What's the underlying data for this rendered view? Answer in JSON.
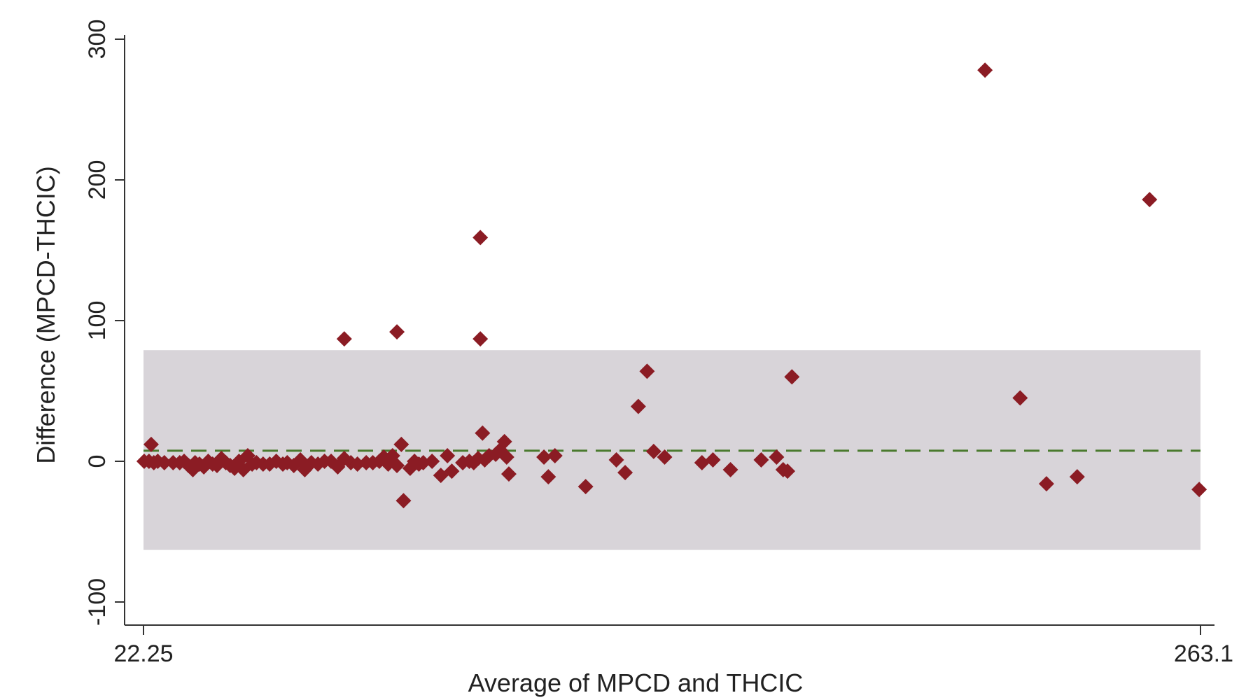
{
  "chart_data": {
    "type": "scatter",
    "title": "",
    "xlabel": "Average of MPCD and THCIC",
    "ylabel": "Difference (MPCD-THCIC)",
    "xlim": [
      22.25,
      263.1
    ],
    "ylim": [
      -100,
      300
    ],
    "x_ticks": [
      "22.25",
      "263.1"
    ],
    "y_ticks": [
      "-100",
      "0",
      "100",
      "200",
      "300"
    ],
    "mean_difference": 7.5,
    "limits_of_agreement": [
      -63,
      79
    ],
    "colors": {
      "points": "#8b1c24",
      "band": "#d8d4d9",
      "mean_line": "#4a7a2e",
      "axis": "#333333"
    },
    "points": [
      {
        "x": 22.4,
        "y": 0
      },
      {
        "x": 23.5,
        "y": 0
      },
      {
        "x": 24.0,
        "y": 12
      },
      {
        "x": 24.6,
        "y": -1
      },
      {
        "x": 25.5,
        "y": 0
      },
      {
        "x": 27.0,
        "y": -1
      },
      {
        "x": 29.0,
        "y": -1
      },
      {
        "x": 30.5,
        "y": -1
      },
      {
        "x": 31.5,
        "y": 0
      },
      {
        "x": 32.5,
        "y": -3
      },
      {
        "x": 33.5,
        "y": -6
      },
      {
        "x": 34.0,
        "y": -1
      },
      {
        "x": 35.0,
        "y": -2
      },
      {
        "x": 36.0,
        "y": -4
      },
      {
        "x": 37.0,
        "y": 0
      },
      {
        "x": 38.0,
        "y": -2
      },
      {
        "x": 39.0,
        "y": -3
      },
      {
        "x": 40.0,
        "y": 2
      },
      {
        "x": 41.0,
        "y": -1
      },
      {
        "x": 42.0,
        "y": -3
      },
      {
        "x": 43.0,
        "y": -5
      },
      {
        "x": 44.0,
        "y": 0
      },
      {
        "x": 45.0,
        "y": -6
      },
      {
        "x": 46.0,
        "y": 4
      },
      {
        "x": 47.0,
        "y": -2
      },
      {
        "x": 48.0,
        "y": -1
      },
      {
        "x": 49.5,
        "y": -2
      },
      {
        "x": 51.0,
        "y": -2
      },
      {
        "x": 52.5,
        "y": 0
      },
      {
        "x": 54.0,
        "y": -2
      },
      {
        "x": 55.0,
        "y": -1
      },
      {
        "x": 56.5,
        "y": -3
      },
      {
        "x": 58.0,
        "y": 1
      },
      {
        "x": 59.0,
        "y": -6
      },
      {
        "x": 60.5,
        "y": -1
      },
      {
        "x": 62.0,
        "y": -2
      },
      {
        "x": 63.5,
        "y": 0
      },
      {
        "x": 65.0,
        "y": 0
      },
      {
        "x": 66.5,
        "y": -4
      },
      {
        "x": 68.0,
        "y": 2
      },
      {
        "x": 69.5,
        "y": -1
      },
      {
        "x": 71.0,
        "y": -2
      },
      {
        "x": 73.0,
        "y": -1
      },
      {
        "x": 74.5,
        "y": -1
      },
      {
        "x": 76.0,
        "y": 0
      },
      {
        "x": 77.0,
        "y": 3
      },
      {
        "x": 78.0,
        "y": -2
      },
      {
        "x": 79.0,
        "y": 4
      },
      {
        "x": 80.0,
        "y": -3
      },
      {
        "x": 81.0,
        "y": 12
      },
      {
        "x": 81.5,
        "y": -28
      },
      {
        "x": 83.0,
        "y": -5
      },
      {
        "x": 84.0,
        "y": 0
      },
      {
        "x": 85.0,
        "y": -2
      },
      {
        "x": 86.0,
        "y": -1
      },
      {
        "x": 88.0,
        "y": 0
      },
      {
        "x": 90.0,
        "y": -10
      },
      {
        "x": 91.5,
        "y": 4
      },
      {
        "x": 92.5,
        "y": -7
      },
      {
        "x": 95.0,
        "y": -1
      },
      {
        "x": 96.5,
        "y": 0
      },
      {
        "x": 97.5,
        "y": -1
      },
      {
        "x": 98.5,
        "y": 2
      },
      {
        "x": 99.5,
        "y": 20
      },
      {
        "x": 100.0,
        "y": 1
      },
      {
        "x": 101.0,
        "y": 4
      },
      {
        "x": 102.5,
        "y": 5
      },
      {
        "x": 103.5,
        "y": 8
      },
      {
        "x": 104.5,
        "y": 14
      },
      {
        "x": 105.0,
        "y": 3
      },
      {
        "x": 105.5,
        "y": -9
      },
      {
        "x": 68.0,
        "y": 87
      },
      {
        "x": 80.0,
        "y": 92
      },
      {
        "x": 99.0,
        "y": 87
      },
      {
        "x": 99.0,
        "y": 159
      },
      {
        "x": 113.5,
        "y": 3
      },
      {
        "x": 114.5,
        "y": -11
      },
      {
        "x": 116.0,
        "y": 4
      },
      {
        "x": 123.0,
        "y": -18
      },
      {
        "x": 130.0,
        "y": 1
      },
      {
        "x": 132.0,
        "y": -8
      },
      {
        "x": 135.0,
        "y": 39
      },
      {
        "x": 137.0,
        "y": 64
      },
      {
        "x": 138.5,
        "y": 7
      },
      {
        "x": 141.0,
        "y": 3
      },
      {
        "x": 149.5,
        "y": -1
      },
      {
        "x": 152.0,
        "y": 1
      },
      {
        "x": 156.0,
        "y": -6
      },
      {
        "x": 163.0,
        "y": 1
      },
      {
        "x": 170.0,
        "y": 60
      },
      {
        "x": 166.5,
        "y": 3
      },
      {
        "x": 168.0,
        "y": -6
      },
      {
        "x": 169.0,
        "y": -7
      },
      {
        "x": 214.0,
        "y": 278
      },
      {
        "x": 222.0,
        "y": 45
      },
      {
        "x": 228.0,
        "y": -16
      },
      {
        "x": 235.0,
        "y": -11
      },
      {
        "x": 251.5,
        "y": 186
      },
      {
        "x": 262.8,
        "y": -20
      }
    ]
  }
}
